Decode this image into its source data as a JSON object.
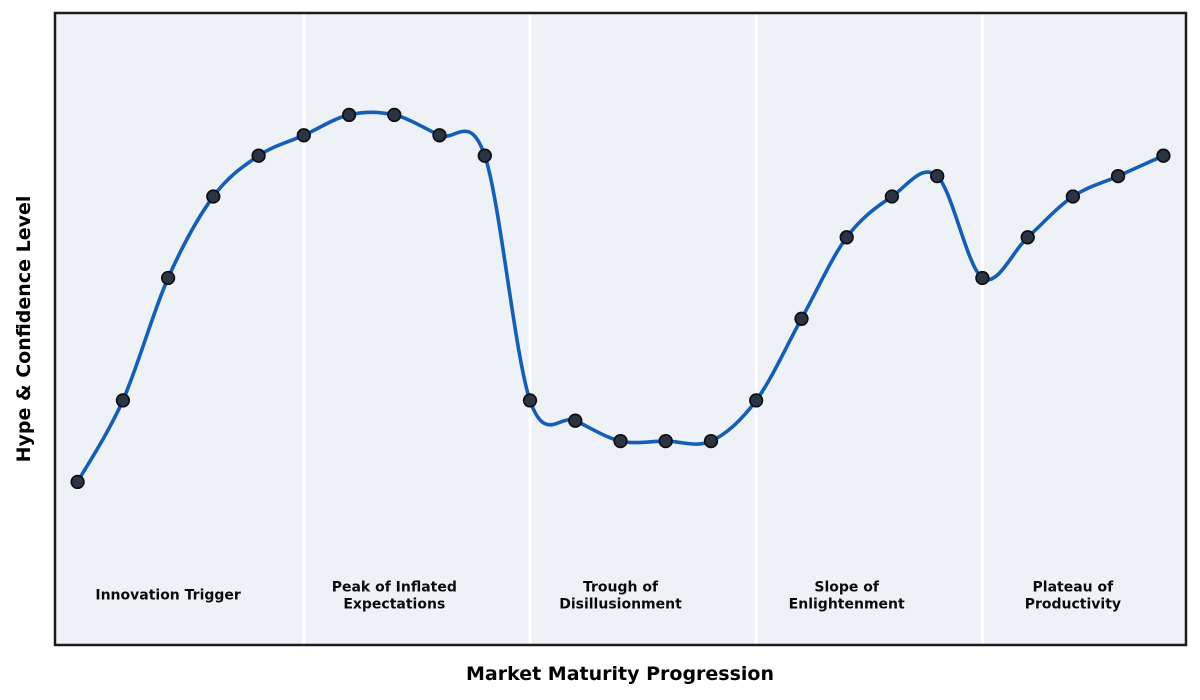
{
  "figure": {
    "background": "#ffffff"
  },
  "chart_data": {
    "type": "line",
    "title": "",
    "xlabel": "Market Maturity Progression",
    "ylabel": "Hype & Confidence Level",
    "grid": false,
    "legend": false,
    "smooth_spline": true,
    "markers": true,
    "xlim": [
      -0.5,
      24.5
    ],
    "ylim": [
      -35,
      120
    ],
    "x": [
      0,
      1,
      2,
      3,
      4,
      5,
      6,
      7,
      8,
      9,
      10,
      11,
      12,
      13,
      14,
      15,
      16,
      17,
      18,
      19,
      20,
      21,
      22,
      23,
      24
    ],
    "values": [
      5,
      25,
      55,
      75,
      85,
      90,
      95,
      95,
      90,
      85,
      25,
      20,
      15,
      15,
      15,
      25,
      45,
      65,
      75,
      80,
      55,
      65,
      75,
      80,
      85
    ],
    "series_name": "hype-confidence-curve",
    "phase_dividers_x": [
      5,
      10,
      15,
      20
    ],
    "phase_label_y": -23,
    "phases": [
      {
        "label": "Innovation Trigger",
        "x": 2
      },
      {
        "label": "Peak of Inflated\nExpectations",
        "x": 7
      },
      {
        "label": "Trough of\nDisillusionment",
        "x": 12
      },
      {
        "label": "Slope of\nEnlightenment",
        "x": 17
      },
      {
        "label": "Plateau of\nProductivity",
        "x": 22
      }
    ],
    "style": {
      "plot_bg": "#eef2f7",
      "divider_color": "#ffffff",
      "spine_color": "#1c1c1e",
      "line_color": "#155eb5",
      "marker_fill": "#2b3442",
      "marker_edge": "#0b0e13",
      "text_color": "#000000"
    }
  }
}
